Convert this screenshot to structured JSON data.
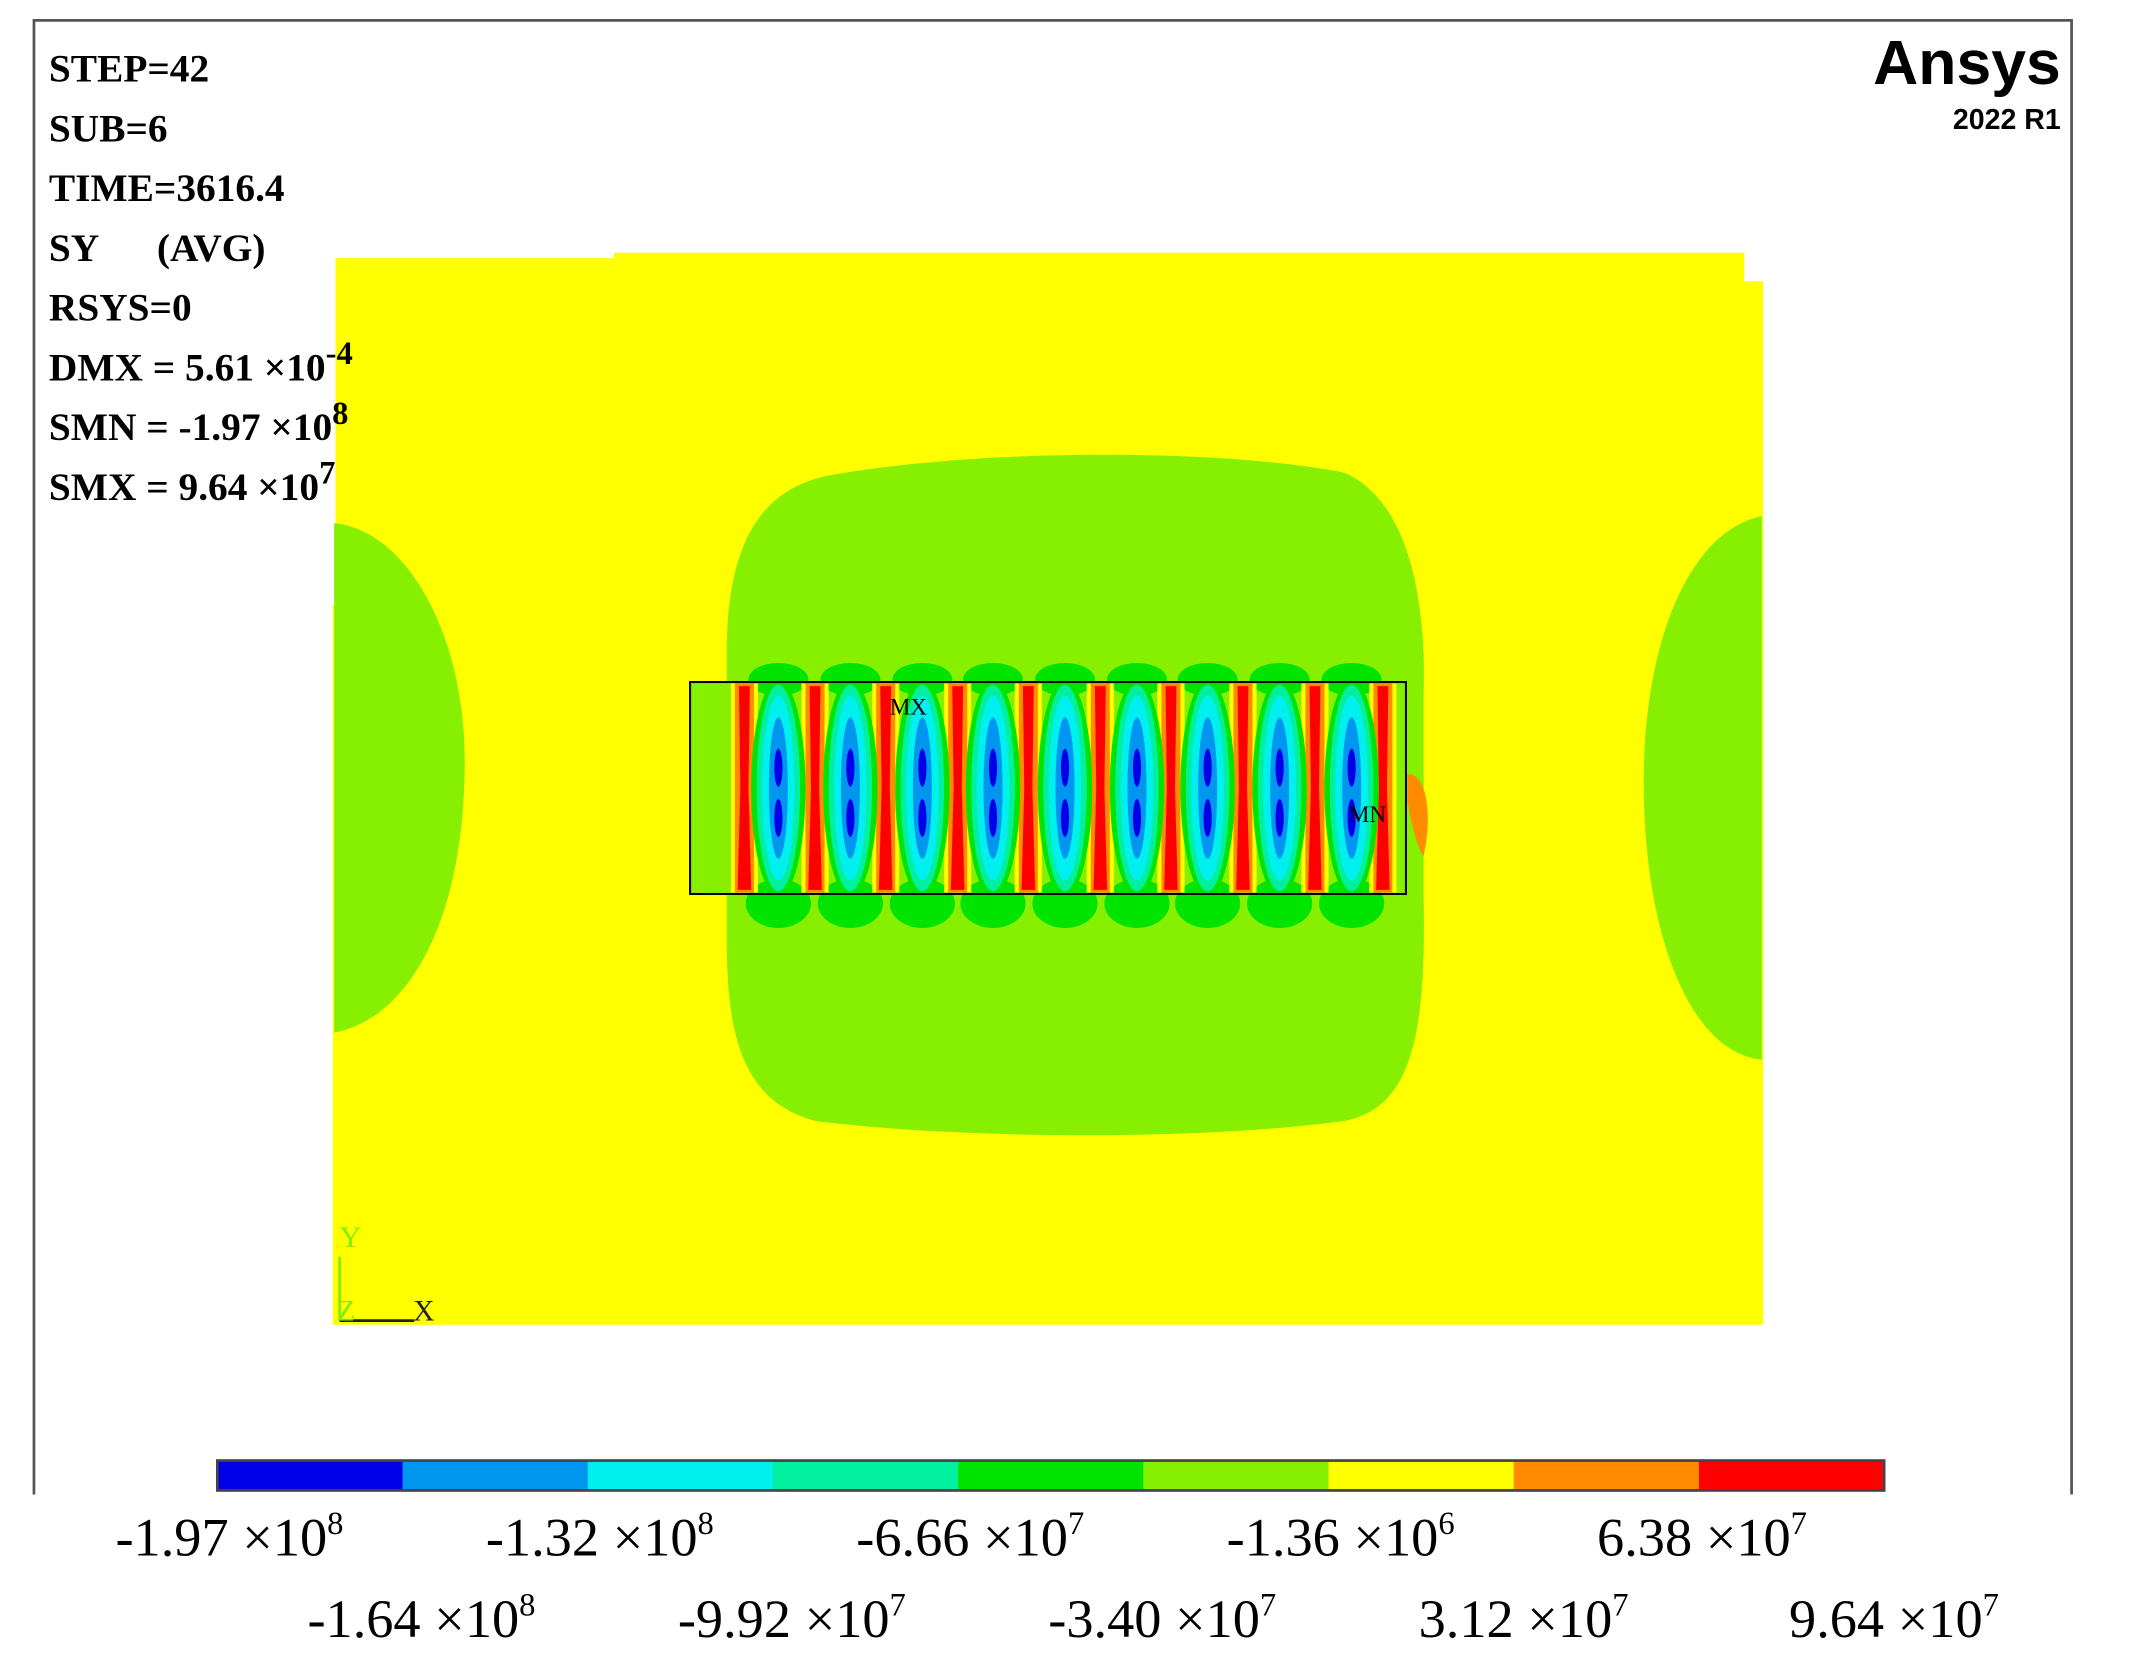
{
  "header": {
    "logo": "Ansys",
    "version": "2022 R1"
  },
  "info": [
    {
      "text": "STEP=42"
    },
    {
      "text": "SUB=6"
    },
    {
      "text": "TIME=3616.4"
    },
    {
      "text": "SY      (AVG)"
    },
    {
      "text": "RSYS=0"
    },
    {
      "text": "DMX = 5.61 ×10",
      "sup": "-4"
    },
    {
      "text": "SMN = -1.97 ×10",
      "sup": "8"
    },
    {
      "text": "SMX = 9.64 ×10",
      "sup": "7"
    }
  ],
  "plot_labels": {
    "max": "MX",
    "min": "MN"
  },
  "axes": {
    "y": "Y",
    "z": "Z",
    "x": "X"
  },
  "legend": {
    "colors": [
      "#0000e8",
      "#0096f0",
      "#00f0f0",
      "#00f0a0",
      "#00e400",
      "#86f000",
      "#ffff00",
      "#ff8c00",
      "#ff0000"
    ],
    "labels": [
      {
        "text": "-1.97 ×10",
        "sup": "8"
      },
      {
        "text": "-1.64 ×10",
        "sup": "8"
      },
      {
        "text": "-1.32 ×10",
        "sup": "8"
      },
      {
        "text": "-9.92 ×10",
        "sup": "7"
      },
      {
        "text": "-6.66 ×10",
        "sup": "7"
      },
      {
        "text": "-3.40 ×10",
        "sup": "7"
      },
      {
        "text": "-1.36 ×10",
        "sup": "6"
      },
      {
        "text": "3.12 ×10",
        "sup": "7"
      },
      {
        "text": "6.38 ×10",
        "sup": "7"
      },
      {
        "text": "9.64 ×10",
        "sup": "7"
      }
    ]
  }
}
